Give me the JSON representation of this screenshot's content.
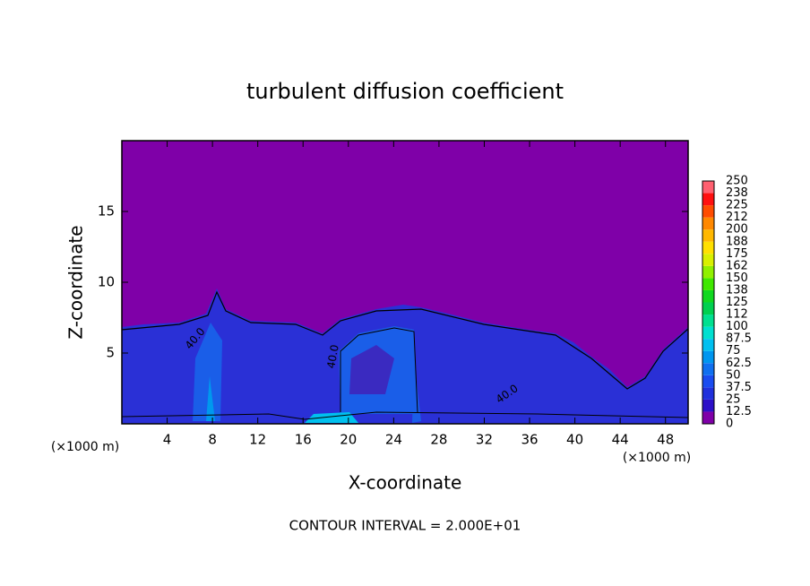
{
  "chart_data": {
    "type": "contour",
    "title": "turbulent diffusion coefficient",
    "xlabel": "X-coordinate",
    "ylabel": "Z-coordinate",
    "x_unit_labels": [
      "(×1000 m)",
      "(×1000 m)"
    ],
    "annotation": "CONTOUR INTERVAL = 2.000E+01",
    "contour_labels": [
      "40.0",
      "40.0",
      "40.0"
    ],
    "xlim": [
      0,
      50
    ],
    "ylim": [
      0,
      20
    ],
    "xticks": [
      4,
      8,
      12,
      16,
      20,
      24,
      28,
      32,
      36,
      40,
      44,
      48
    ],
    "yticks": [
      5,
      10,
      15
    ],
    "colorbar": {
      "levels": [
        0,
        12.5,
        25,
        37.5,
        50,
        62.5,
        75,
        87.5,
        100,
        112,
        125,
        138,
        150,
        162,
        175,
        188,
        200,
        212,
        225,
        238,
        250
      ],
      "colors": [
        "#7f00a8",
        "#2c10c8",
        "#2030dc",
        "#1a4cf0",
        "#1070f0",
        "#0096f0",
        "#00c0f0",
        "#00e0d0",
        "#00e090",
        "#00d050",
        "#10d820",
        "#40e800",
        "#90f000",
        "#d8f000",
        "#ffe000",
        "#ffb800",
        "#ff8800",
        "#ff4c00",
        "#ff1010",
        "#ff6070"
      ]
    }
  }
}
